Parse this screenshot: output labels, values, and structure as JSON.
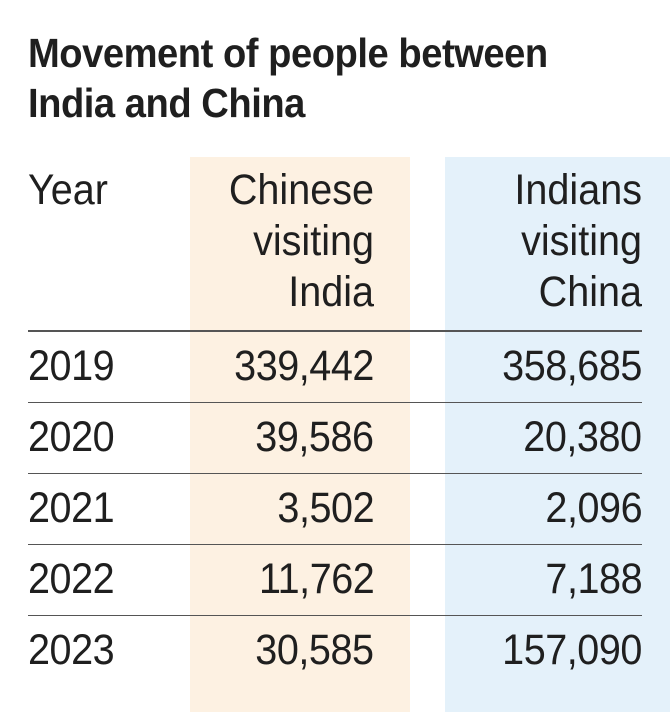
{
  "title_lines": [
    "Movement of people between",
    "India and China"
  ],
  "colors": {
    "chinese_band": "#fdf1e2",
    "indians_band": "#e4f1fa"
  },
  "chart_data": {
    "type": "table",
    "title": "Movement of people between India and China",
    "columns": [
      {
        "key": "year",
        "header_lines": [
          "Year"
        ]
      },
      {
        "key": "chinese",
        "header_lines": [
          "Chinese",
          "visiting",
          "India"
        ]
      },
      {
        "key": "indians",
        "header_lines": [
          "Indians",
          "visiting",
          "China"
        ]
      }
    ],
    "rows": [
      {
        "year": "2019",
        "chinese": "339,442",
        "indians": "358,685"
      },
      {
        "year": "2020",
        "chinese": "39,586",
        "indians": "20,380"
      },
      {
        "year": "2021",
        "chinese": "3,502",
        "indians": "2,096"
      },
      {
        "year": "2022",
        "chinese": "11,762",
        "indians": "7,188"
      },
      {
        "year": "2023",
        "chinese": "30,585",
        "indians": "157,090"
      }
    ]
  }
}
